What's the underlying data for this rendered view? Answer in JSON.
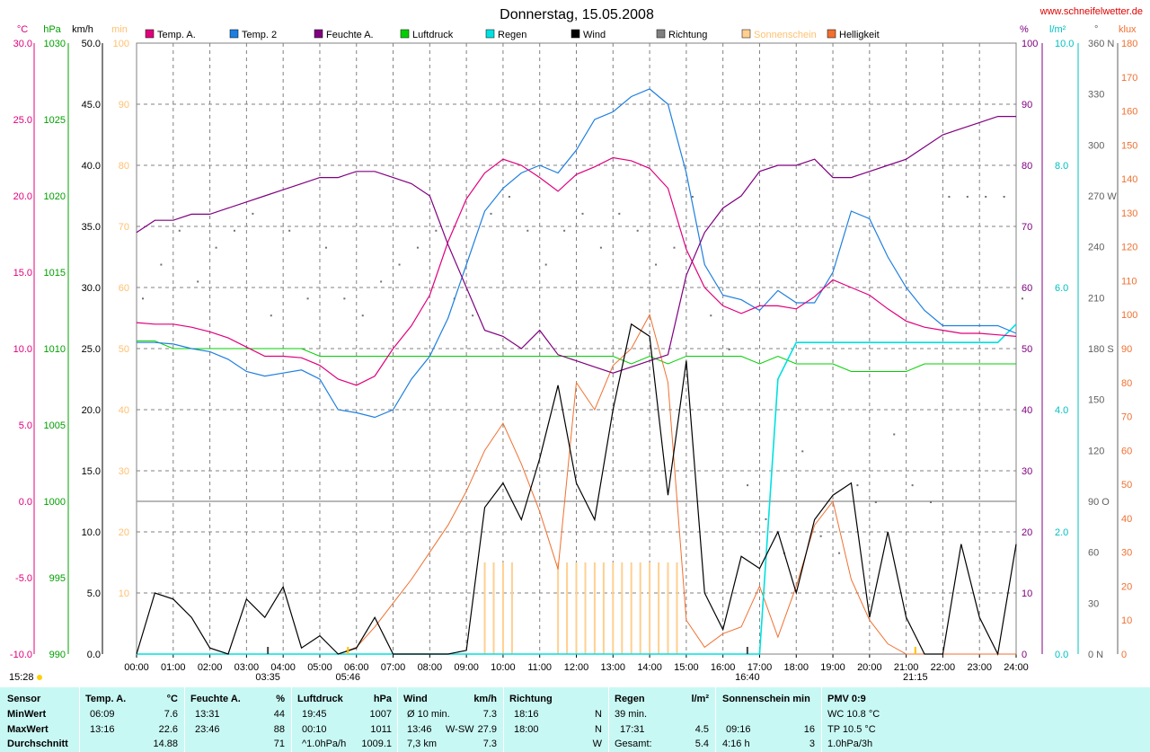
{
  "title": "Donnerstag, 15.05.2008",
  "site": "www.schneifelwetter.de",
  "colors": {
    "temp_a": "#e0007c",
    "temp_2": "#1e7fe0",
    "feuchte": "#800080",
    "luftdruck": "#00d000",
    "regen": "#00e0e0",
    "wind": "#000000",
    "richtung": "#707070",
    "sonnenschein": "#ffd090",
    "helligkeit": "#f07030",
    "summary_bg": "#c8f8f4"
  },
  "axes": {
    "temp": {
      "unit": "°C",
      "ticks": [
        "30.0",
        "25.0",
        "20.0",
        "15.0",
        "10.0",
        "5.0",
        "0.0",
        "-5.0",
        "-10.0"
      ]
    },
    "hpa": {
      "unit": "hPa",
      "ticks": [
        "1030",
        "1025",
        "1020",
        "1015",
        "1010",
        "1005",
        "1000",
        "995",
        "990"
      ]
    },
    "kmh": {
      "unit": "km/h",
      "ticks": [
        "50.0",
        "45.0",
        "40.0",
        "35.0",
        "30.0",
        "25.0",
        "20.0",
        "15.0",
        "10.0",
        "5.0",
        "0.0"
      ]
    },
    "min": {
      "unit": "min",
      "ticks": [
        "100",
        "90",
        "80",
        "70",
        "60",
        "50",
        "40",
        "30",
        "20",
        "10"
      ]
    },
    "pct": {
      "unit": "%",
      "ticks": [
        "100",
        "90",
        "80",
        "70",
        "60",
        "50",
        "40",
        "30",
        "20",
        "10",
        "0"
      ]
    },
    "lm2": {
      "unit": "l/m²",
      "ticks": [
        "10.0",
        "8.0",
        "6.0",
        "4.0",
        "2.0",
        "0.0"
      ]
    },
    "deg": {
      "unit": "°",
      "ticks": [
        "360 N",
        "330",
        "300",
        "270 W",
        "240",
        "210",
        "180 S",
        "150",
        "120",
        "90  O",
        "60",
        "30",
        "0    N"
      ]
    },
    "klux": {
      "unit": "klux",
      "ticks": [
        "180",
        "170",
        "160",
        "150",
        "140",
        "130",
        "120",
        "110",
        "100",
        "90",
        "80",
        "70",
        "60",
        "50",
        "40",
        "30",
        "20",
        "10",
        "0"
      ]
    },
    "time": [
      "00:00",
      "01:00",
      "02:00",
      "03:00",
      "04:00",
      "05:00",
      "06:00",
      "07:00",
      "08:00",
      "09:00",
      "10:00",
      "11:00",
      "12:00",
      "13:00",
      "14:00",
      "15:00",
      "16:00",
      "17:00",
      "18:00",
      "19:00",
      "20:00",
      "21:00",
      "22:00",
      "23:00",
      "24:00"
    ]
  },
  "sun_marks": {
    "now": "15:28",
    "moonrise": "03:35",
    "sunrise": "05:46",
    "moonset": "16:40",
    "sunset": "21:15"
  },
  "legend": [
    {
      "label": "Temp. A.",
      "color": "#e0007c"
    },
    {
      "label": "Temp. 2",
      "color": "#1e7fe0"
    },
    {
      "label": "Feuchte A.",
      "color": "#800080"
    },
    {
      "label": "Luftdruck",
      "color": "#00d000"
    },
    {
      "label": "Regen",
      "color": "#00e0e0"
    },
    {
      "label": "Wind",
      "color": "#000000"
    },
    {
      "label": "Richtung",
      "color": "#808080"
    },
    {
      "label": "Sonnenschein",
      "color": "#ffd090"
    },
    {
      "label": "Helligkeit",
      "color": "#f07030"
    }
  ],
  "chart_data": {
    "type": "line",
    "title": "Donnerstag, 15.05.2008",
    "x_hours": [
      0,
      0.5,
      1,
      1.5,
      2,
      2.5,
      3,
      3.5,
      4,
      4.5,
      5,
      5.5,
      6,
      6.5,
      7,
      7.5,
      8,
      8.5,
      9,
      9.5,
      10,
      10.5,
      11,
      11.5,
      12,
      12.5,
      13,
      13.5,
      14,
      14.5,
      15,
      15.5,
      16,
      16.5,
      17,
      17.5,
      18,
      18.5,
      19,
      19.5,
      20,
      20.5,
      21,
      21.5,
      22,
      22.5,
      23,
      23.5,
      24
    ],
    "series": [
      {
        "name": "Temp. A.",
        "unit": "°C",
        "values": [
          11.7,
          11.6,
          11.6,
          11.4,
          11.1,
          10.7,
          10.1,
          9.5,
          9.5,
          9.4,
          8.9,
          8.0,
          7.6,
          8.2,
          10.0,
          11.5,
          13.5,
          17.0,
          19.8,
          21.5,
          22.4,
          22.0,
          21.2,
          20.3,
          21.4,
          21.9,
          22.5,
          22.3,
          21.8,
          20.5,
          16.5,
          14.0,
          12.8,
          12.3,
          12.8,
          12.8,
          12.6,
          13.4,
          14.5,
          14.0,
          13.5,
          12.6,
          11.8,
          11.4,
          11.2,
          11.0,
          11.0,
          10.9,
          10.8
        ]
      },
      {
        "name": "Temp. 2",
        "unit": "°C",
        "values": [
          10.4,
          10.4,
          10.3,
          10.0,
          9.8,
          9.3,
          8.5,
          8.2,
          8.4,
          8.6,
          8.0,
          6.0,
          5.8,
          5.5,
          6.0,
          8.0,
          9.5,
          12.0,
          15.5,
          19.0,
          20.5,
          21.5,
          22.0,
          21.5,
          23.0,
          25.0,
          25.5,
          26.5,
          27.0,
          26.0,
          21.5,
          15.5,
          13.5,
          13.2,
          12.5,
          13.8,
          13.0,
          13.0,
          15.0,
          19.0,
          18.5,
          16.0,
          14.0,
          12.5,
          11.5,
          11.5,
          11.5,
          11.5,
          11.0
        ]
      },
      {
        "name": "Feuchte A.",
        "unit": "%",
        "values": [
          69,
          71,
          71,
          72,
          72,
          73,
          74,
          75,
          76,
          77,
          78,
          78,
          79,
          79,
          78,
          77,
          75,
          67,
          60,
          53,
          52,
          50,
          53,
          49,
          48,
          47,
          46,
          47,
          48,
          49,
          62,
          69,
          73,
          75,
          79,
          80,
          80,
          81,
          78,
          78,
          79,
          80,
          81,
          83,
          85,
          86,
          87,
          88,
          88
        ]
      },
      {
        "name": "Luftdruck",
        "unit": "hPa",
        "values": [
          1010.5,
          1010.5,
          1010.0,
          1010.0,
          1010.0,
          1010.0,
          1010.0,
          1010.0,
          1010.0,
          1010.0,
          1009.5,
          1009.5,
          1009.5,
          1009.5,
          1009.5,
          1009.5,
          1009.5,
          1009.5,
          1009.5,
          1009.5,
          1009.5,
          1009.5,
          1009.5,
          1009.5,
          1009.5,
          1009.5,
          1009.5,
          1009.0,
          1009.5,
          1009.0,
          1009.5,
          1009.5,
          1009.5,
          1009.5,
          1009.0,
          1009.5,
          1009.0,
          1009.0,
          1009.0,
          1008.5,
          1008.5,
          1008.5,
          1008.5,
          1009.0,
          1009.0,
          1009.0,
          1009.0,
          1009.0,
          1009.0
        ]
      },
      {
        "name": "Regen",
        "unit": "l/m²",
        "values": [
          0,
          0,
          0,
          0,
          0,
          0,
          0,
          0,
          0,
          0,
          0,
          0,
          0,
          0,
          0,
          0,
          0,
          0,
          0,
          0,
          0,
          0,
          0,
          0,
          0,
          0,
          0,
          0,
          0,
          0,
          0,
          0,
          0,
          0,
          0,
          4.5,
          5.1,
          5.1,
          5.1,
          5.1,
          5.1,
          5.1,
          5.1,
          5.1,
          5.1,
          5.1,
          5.1,
          5.1,
          5.4
        ]
      },
      {
        "name": "Wind",
        "unit": "km/h",
        "values": [
          0,
          5,
          4.5,
          3,
          0.5,
          0,
          4.5,
          3,
          5.5,
          0.5,
          1.5,
          0,
          0.5,
          3,
          0,
          0,
          0,
          0,
          0.3,
          12,
          14,
          11,
          16,
          22,
          14,
          11,
          20,
          27,
          26,
          13,
          24,
          5,
          2,
          8,
          7,
          10,
          5,
          11,
          13,
          14,
          3,
          10,
          3,
          0,
          0,
          9,
          3,
          0,
          9
        ]
      },
      {
        "name": "Helligkeit",
        "unit": "klux",
        "values": [
          0,
          0,
          0,
          0,
          0,
          0,
          0,
          0,
          0,
          0,
          0,
          0,
          2,
          8,
          15,
          22,
          30,
          38,
          48,
          60,
          68,
          56,
          42,
          25,
          80,
          72,
          85,
          90,
          100,
          80,
          10,
          2,
          6,
          8,
          20,
          5,
          20,
          38,
          45,
          22,
          10,
          3,
          0,
          0,
          0,
          0,
          0,
          0,
          0
        ]
      },
      {
        "name": "Sonnenschein",
        "unit": "min",
        "values": [
          0,
          0,
          0,
          0,
          0,
          0,
          0,
          0,
          0,
          0,
          0,
          0,
          0,
          0,
          0,
          0,
          0,
          0,
          0,
          15,
          15,
          0,
          0,
          15,
          15,
          15,
          15,
          15,
          15,
          15,
          0,
          0,
          0,
          0,
          0,
          0,
          0,
          0,
          0,
          0,
          0,
          0,
          0,
          0,
          0,
          0,
          0,
          0,
          0
        ]
      },
      {
        "name": "Richtung",
        "unit": "°",
        "values": [
          210,
          230,
          250,
          220,
          240,
          250,
          260,
          200,
          250,
          210,
          240,
          210,
          200,
          220,
          230,
          240,
          250,
          210,
          200,
          260,
          270,
          250,
          230,
          250,
          260,
          240,
          260,
          250,
          230,
          240,
          270,
          200,
          180,
          100,
          80,
          60,
          120,
          70,
          60,
          100,
          90,
          130,
          100,
          90,
          270,
          270,
          270,
          270,
          210
        ]
      }
    ],
    "xlim": [
      0,
      24
    ],
    "ylim_temp": [
      -10,
      30
    ],
    "ylim_hpa": [
      990,
      1030
    ],
    "ylim_kmh": [
      0,
      50
    ],
    "ylim_min": [
      0,
      100
    ],
    "ylim_pct": [
      0,
      100
    ],
    "ylim_lm2": [
      0,
      10
    ],
    "ylim_deg": [
      0,
      360
    ],
    "ylim_klux": [
      0,
      180
    ],
    "grid": true,
    "legend_position": "top"
  },
  "summary": {
    "headers": {
      "sensor": "Sensor",
      "temp": "Temp. A.",
      "temp_unit": "°C",
      "feuchte": "Feuchte A.",
      "feuchte_unit": "%",
      "luftdruck": "Luftdruck",
      "luftdruck_unit": "hPa",
      "wind": "Wind",
      "wind_unit": "km/h",
      "richtung": "Richtung",
      "regen": "Regen",
      "regen_unit": "l/m²",
      "sonne": "Sonnenschein min",
      "pmv": "PMV 0:9"
    },
    "row_labels": [
      "MinWert",
      "MaxWert",
      "Durchschnitt"
    ],
    "temp": [
      [
        "06:09",
        "7.6"
      ],
      [
        "13:16",
        "22.6"
      ],
      [
        "",
        "14.88"
      ]
    ],
    "feuchte": [
      [
        "13:31",
        "44"
      ],
      [
        "23:46",
        "88"
      ],
      [
        "",
        "71"
      ]
    ],
    "luftdruck": [
      [
        "19:45",
        "1007"
      ],
      [
        "00:10",
        "1011"
      ],
      [
        "^1.0hPa/h",
        "1009.1"
      ]
    ],
    "wind": [
      [
        "Ø 10 min.",
        "",
        "7.3"
      ],
      [
        "13:46",
        "W-SW",
        "27.9"
      ],
      [
        "7,3 km",
        "",
        "7.3"
      ]
    ],
    "richtung": [
      [
        "18:16",
        "N"
      ],
      [
        "18:00",
        "N"
      ],
      [
        "",
        "W"
      ]
    ],
    "regen": [
      [
        "39 min.",
        ""
      ],
      [
        "17:31",
        "4.5"
      ],
      [
        "Gesamt:",
        "5.4"
      ]
    ],
    "sonne": [
      [
        "",
        ""
      ],
      [
        "09:16",
        "16"
      ],
      [
        "4:16 h",
        "3"
      ]
    ],
    "pmv": [
      "WC 10.8 °C",
      "TP 10.5 °C",
      "1.0hPa/3h"
    ]
  }
}
